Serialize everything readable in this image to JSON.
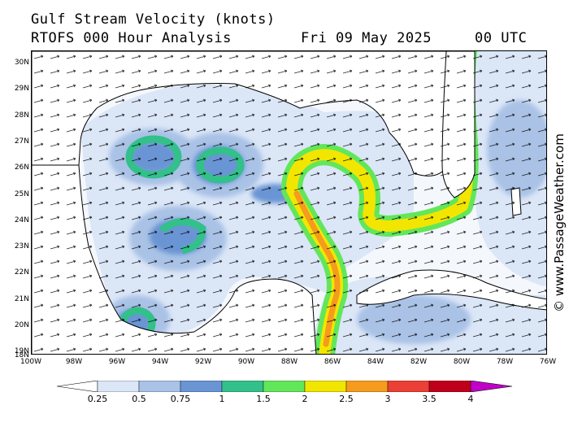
{
  "header": {
    "title": "Gulf Stream Velocity (knots)",
    "model": "RTOFS 000 Hour Analysis",
    "date": "Fri 09 May 2025",
    "time": "00 UTC"
  },
  "credit": "© www.PassageWeather.com",
  "axes": {
    "lat_labels": [
      "30N",
      "29N",
      "28N",
      "27N",
      "26N",
      "25N",
      "24N",
      "23N",
      "22N",
      "21N",
      "20N",
      "19N",
      "18N"
    ],
    "lon_labels": [
      "100W",
      "98W",
      "96W",
      "94W",
      "92W",
      "90W",
      "88W",
      "86W",
      "84W",
      "82W",
      "80W",
      "78W",
      "76W"
    ]
  },
  "legend": {
    "labels": [
      "0.25",
      "0.5",
      "0.75",
      "1",
      "1.5",
      "2",
      "2.5",
      "3",
      "3.5",
      "4"
    ],
    "colors": [
      "#ffffff",
      "#dbe6f7",
      "#a9c2e6",
      "#6a95d4",
      "#33c08a",
      "#62e65a",
      "#f2e600",
      "#f59b1d",
      "#ea4035",
      "#c0001a",
      "#c000c8"
    ]
  },
  "colors": {
    "land": "#ffffff",
    "weak": "#dbe6f7",
    "mild": "#a9c2e6",
    "moderate": "#6a95d4",
    "eddy": "#33c08a",
    "core": "#f2e600",
    "peak": "#c0001a"
  }
}
